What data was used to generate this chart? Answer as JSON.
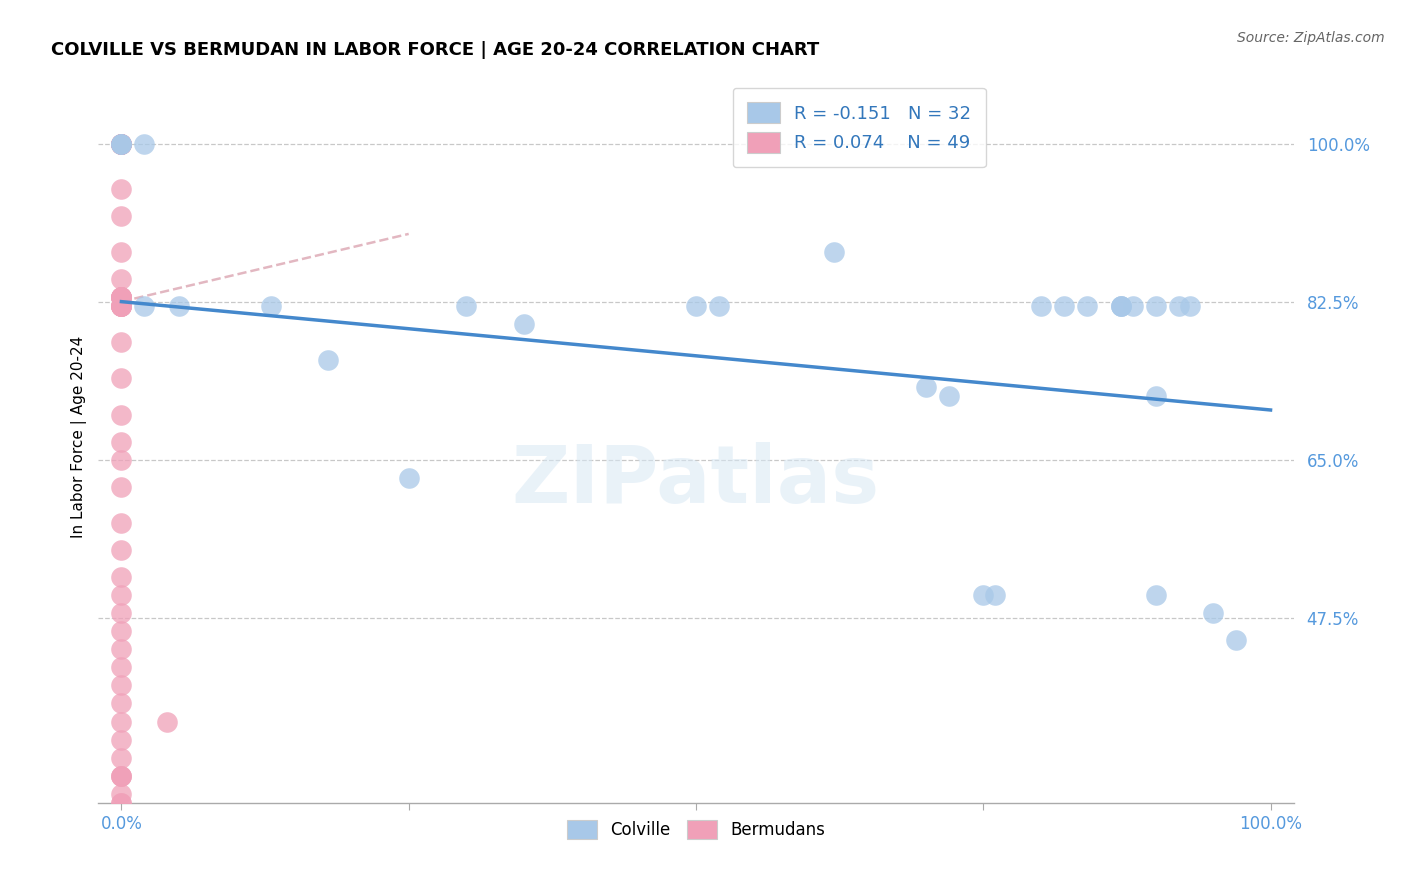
{
  "title": "COLVILLE VS BERMUDAN IN LABOR FORCE | AGE 20-24 CORRELATION CHART",
  "source": "Source: ZipAtlas.com",
  "ylabel": "In Labor Force | Age 20-24",
  "xlim": [
    -0.02,
    1.02
  ],
  "ylim": [
    0.27,
    1.08
  ],
  "yticks": [
    0.475,
    0.65,
    0.825,
    1.0
  ],
  "ytick_labels": [
    "47.5%",
    "65.0%",
    "82.5%",
    "100.0%"
  ],
  "blue_R": -0.151,
  "blue_N": 32,
  "pink_R": 0.074,
  "pink_N": 49,
  "blue_color": "#A8C8E8",
  "pink_color": "#F0A0B8",
  "blue_line_color": "#4488CC",
  "pink_line_color": "#D08898",
  "watermark": "ZIPatlas",
  "blue_x": [
    0.0,
    0.0,
    0.0,
    0.02,
    0.02,
    0.05,
    0.13,
    0.18,
    0.25,
    0.3,
    0.35,
    0.5,
    0.52,
    0.62,
    0.7,
    0.72,
    0.75,
    0.76,
    0.8,
    0.82,
    0.84,
    0.87,
    0.87,
    0.87,
    0.88,
    0.9,
    0.9,
    0.9,
    0.92,
    0.93,
    0.95,
    0.97
  ],
  "blue_y": [
    1.0,
    1.0,
    1.0,
    1.0,
    0.82,
    0.82,
    0.82,
    0.76,
    0.63,
    0.82,
    0.8,
    0.82,
    0.82,
    0.88,
    0.73,
    0.72,
    0.5,
    0.5,
    0.82,
    0.82,
    0.82,
    0.82,
    0.82,
    0.82,
    0.82,
    0.82,
    0.72,
    0.5,
    0.82,
    0.82,
    0.48,
    0.45
  ],
  "pink_x": [
    0.0,
    0.0,
    0.0,
    0.0,
    0.0,
    0.0,
    0.0,
    0.0,
    0.0,
    0.0,
    0.0,
    0.0,
    0.0,
    0.0,
    0.0,
    0.0,
    0.0,
    0.0,
    0.0,
    0.0,
    0.0,
    0.0,
    0.0,
    0.0,
    0.0,
    0.0,
    0.0,
    0.0,
    0.0,
    0.0,
    0.0,
    0.0,
    0.0,
    0.0,
    0.0,
    0.0,
    0.0,
    0.0,
    0.0,
    0.0,
    0.0,
    0.0,
    0.0,
    0.0,
    0.0,
    0.0,
    0.0,
    0.0,
    0.04
  ],
  "pink_y": [
    1.0,
    1.0,
    1.0,
    1.0,
    1.0,
    1.0,
    1.0,
    0.95,
    0.92,
    0.88,
    0.85,
    0.83,
    0.83,
    0.83,
    0.83,
    0.83,
    0.83,
    0.82,
    0.82,
    0.82,
    0.82,
    0.82,
    0.82,
    0.78,
    0.74,
    0.7,
    0.67,
    0.65,
    0.62,
    0.58,
    0.55,
    0.52,
    0.5,
    0.48,
    0.46,
    0.44,
    0.42,
    0.4,
    0.38,
    0.36,
    0.34,
    0.32,
    0.3,
    0.28,
    0.27,
    0.27,
    0.3,
    0.3,
    0.36
  ],
  "blue_trend_x": [
    0.0,
    1.0
  ],
  "blue_trend_y": [
    0.825,
    0.705
  ],
  "pink_trend_x": [
    0.0,
    0.25
  ],
  "pink_trend_y": [
    0.825,
    0.9
  ]
}
